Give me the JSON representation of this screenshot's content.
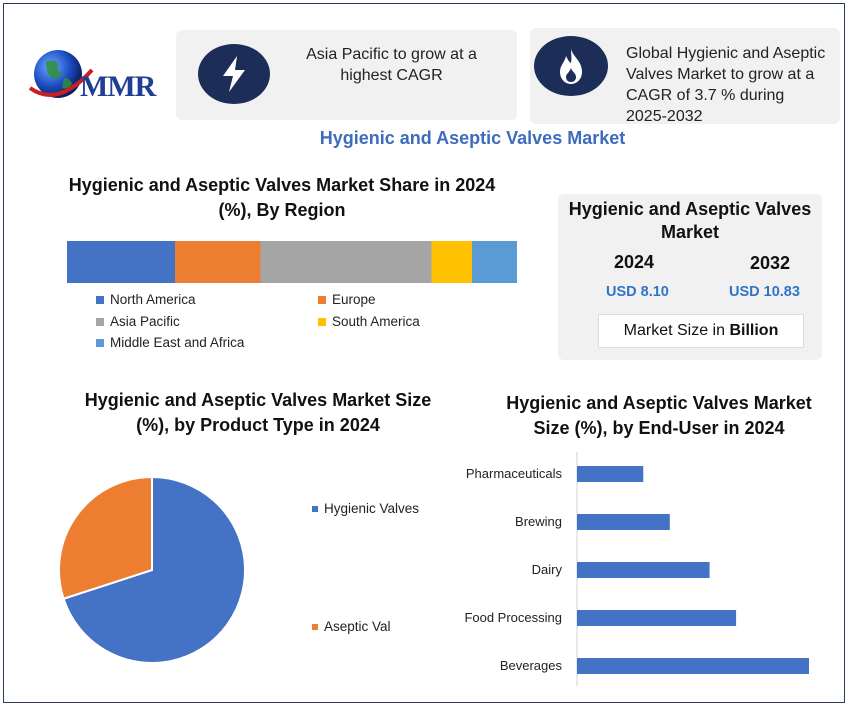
{
  "brand": {
    "logo_text": "MMR"
  },
  "cards": [
    {
      "icon": "lightning-icon",
      "text": "Asia Pacific to grow at a highest CAGR"
    },
    {
      "icon": "flame-icon",
      "text": "Global Hygienic and Aseptic Valves Market to grow at a CAGR of 3.7 % during 2025-2032"
    }
  ],
  "main_title": "Hygienic and Aseptic Valves Market",
  "market_size": {
    "title": "Hygienic and Aseptic Valves Market",
    "year_a": "2024",
    "year_b": "2032",
    "value_a": "USD 8.10",
    "value_b": "USD 10.83",
    "unit_prefix": "Market Size in ",
    "unit_bold": "Billion"
  },
  "colors": {
    "north_america": "#4472c4",
    "europe": "#ed7d31",
    "asia_pacific": "#a5a5a5",
    "south_america": "#ffc000",
    "middle_east_africa": "#5b9bd5",
    "bar_blue": "#4472c4",
    "accent": "#3f6bbf"
  },
  "chart_data": [
    {
      "type": "bar",
      "orientation": "horizontal-stacked",
      "title": "Hygienic and Aseptic Valves Market Share in 2024 (%), By Region",
      "series": [
        {
          "name": "North America",
          "value": 24
        },
        {
          "name": "Europe",
          "value": 19
        },
        {
          "name": "Asia Pacific",
          "value": 38
        },
        {
          "name": "South America",
          "value": 9
        },
        {
          "name": "Middle East and Africa",
          "value": 10
        }
      ],
      "xlim": [
        0,
        100
      ],
      "grid": false,
      "legend_position": "bottom"
    },
    {
      "type": "pie",
      "title": "Hygienic and Aseptic Valves Market Size (%), by Product Type in 2024",
      "categories": [
        "Hygienic Valves",
        "Aseptic Val"
      ],
      "values": [
        70,
        30
      ],
      "legend_position": "right"
    },
    {
      "type": "bar",
      "orientation": "horizontal",
      "title": "Hygienic and Aseptic Valves Market Size (%), by End-User in 2024",
      "categories": [
        "Pharmaceuticals",
        "Brewing",
        "Dairy",
        "Food Processing",
        "Beverages"
      ],
      "values": [
        10,
        14,
        20,
        24,
        35
      ],
      "xlim": [
        0,
        35
      ],
      "grid": false
    }
  ]
}
